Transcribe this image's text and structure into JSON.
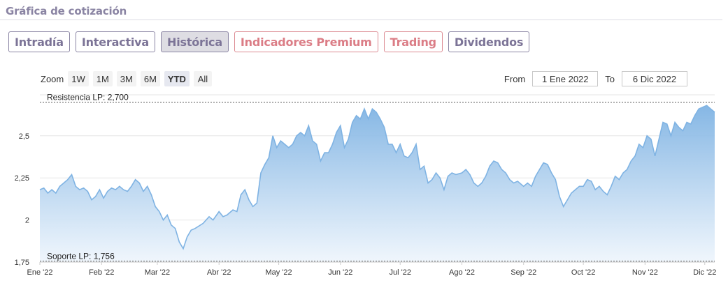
{
  "header": {
    "title": "Gráfica de cotización"
  },
  "tabs": [
    {
      "label": "Intradía",
      "variant": "normal"
    },
    {
      "label": "Interactiva",
      "variant": "normal"
    },
    {
      "label": "Histórica",
      "variant": "active"
    },
    {
      "label": "Indicadores Premium",
      "variant": "premium"
    },
    {
      "label": "Trading",
      "variant": "premium"
    },
    {
      "label": "Dividendos",
      "variant": "normal"
    }
  ],
  "zoom": {
    "label": "Zoom",
    "options": [
      "1W",
      "1M",
      "3M",
      "6M",
      "YTD",
      "All"
    ],
    "selected": "YTD"
  },
  "range": {
    "from_label": "From",
    "from_value": "1 Ene 2022",
    "to_label": "To",
    "to_value": "6 Dic 2022"
  },
  "colors": {
    "line": "#7fb3e3",
    "fill_top": "#7fb3e3",
    "fill_bottom": "#eef5fc",
    "grid": "#e6e6e6",
    "band_line": "#555555"
  },
  "chart_data": {
    "type": "area",
    "ylim": [
      1.75,
      2.76
    ],
    "yticks": [
      1.75,
      2,
      2.25,
      2.5
    ],
    "ytick_labels": [
      "1,75",
      "2",
      "2,25",
      "2,5"
    ],
    "xlim": [
      "2022-01-01",
      "2022-12-06"
    ],
    "xticks": [
      {
        "date": "2022-01-01",
        "label": "Ene '22"
      },
      {
        "date": "2022-02-01",
        "label": "Feb '22"
      },
      {
        "date": "2022-03-01",
        "label": "Mar '22"
      },
      {
        "date": "2022-04-01",
        "label": "Abr '22"
      },
      {
        "date": "2022-05-01",
        "label": "May '22"
      },
      {
        "date": "2022-06-01",
        "label": "Jun '22"
      },
      {
        "date": "2022-07-01",
        "label": "Jul '22"
      },
      {
        "date": "2022-08-01",
        "label": "Ago '22"
      },
      {
        "date": "2022-09-01",
        "label": "Sep '22"
      },
      {
        "date": "2022-10-01",
        "label": "Oct '22"
      },
      {
        "date": "2022-11-01",
        "label": "Nov '22"
      },
      {
        "date": "2022-12-01",
        "label": "Dic '22"
      }
    ],
    "reference_lines": [
      {
        "value": 2.7,
        "label": "Resistencia LP: 2,700"
      },
      {
        "value": 1.756,
        "label": "Soporte LP: 1,756"
      }
    ],
    "points": [
      [
        "2022-01-01",
        2.18
      ],
      [
        "2022-01-03",
        2.19
      ],
      [
        "2022-01-05",
        2.16
      ],
      [
        "2022-01-07",
        2.18
      ],
      [
        "2022-01-09",
        2.16
      ],
      [
        "2022-01-11",
        2.2
      ],
      [
        "2022-01-13",
        2.22
      ],
      [
        "2022-01-15",
        2.24
      ],
      [
        "2022-01-17",
        2.27
      ],
      [
        "2022-01-19",
        2.2
      ],
      [
        "2022-01-21",
        2.18
      ],
      [
        "2022-01-23",
        2.19
      ],
      [
        "2022-01-25",
        2.17
      ],
      [
        "2022-01-27",
        2.12
      ],
      [
        "2022-01-29",
        2.14
      ],
      [
        "2022-01-31",
        2.18
      ],
      [
        "2022-02-02",
        2.13
      ],
      [
        "2022-02-04",
        2.17
      ],
      [
        "2022-02-06",
        2.19
      ],
      [
        "2022-02-08",
        2.18
      ],
      [
        "2022-02-10",
        2.2
      ],
      [
        "2022-02-12",
        2.18
      ],
      [
        "2022-02-14",
        2.17
      ],
      [
        "2022-02-16",
        2.2
      ],
      [
        "2022-02-18",
        2.24
      ],
      [
        "2022-02-20",
        2.22
      ],
      [
        "2022-02-22",
        2.17
      ],
      [
        "2022-02-24",
        2.2
      ],
      [
        "2022-02-26",
        2.15
      ],
      [
        "2022-02-28",
        2.08
      ],
      [
        "2022-03-02",
        2.05
      ],
      [
        "2022-03-04",
        2.0
      ],
      [
        "2022-03-06",
        2.03
      ],
      [
        "2022-03-08",
        1.97
      ],
      [
        "2022-03-10",
        1.95
      ],
      [
        "2022-03-12",
        1.87
      ],
      [
        "2022-03-14",
        1.83
      ],
      [
        "2022-03-16",
        1.9
      ],
      [
        "2022-03-18",
        1.94
      ],
      [
        "2022-03-20",
        1.95
      ],
      [
        "2022-03-24",
        1.98
      ],
      [
        "2022-03-27",
        2.02
      ],
      [
        "2022-03-29",
        2.0
      ],
      [
        "2022-04-01",
        2.05
      ],
      [
        "2022-04-03",
        2.02
      ],
      [
        "2022-04-05",
        2.03
      ],
      [
        "2022-04-08",
        2.06
      ],
      [
        "2022-04-10",
        2.05
      ],
      [
        "2022-04-12",
        2.15
      ],
      [
        "2022-04-14",
        2.18
      ],
      [
        "2022-04-16",
        2.12
      ],
      [
        "2022-04-18",
        2.08
      ],
      [
        "2022-04-20",
        2.1
      ],
      [
        "2022-04-22",
        2.28
      ],
      [
        "2022-04-24",
        2.33
      ],
      [
        "2022-04-26",
        2.37
      ],
      [
        "2022-04-28",
        2.5
      ],
      [
        "2022-04-30",
        2.43
      ],
      [
        "2022-05-02",
        2.47
      ],
      [
        "2022-05-04",
        2.45
      ],
      [
        "2022-05-06",
        2.43
      ],
      [
        "2022-05-08",
        2.45
      ],
      [
        "2022-05-10",
        2.5
      ],
      [
        "2022-05-12",
        2.52
      ],
      [
        "2022-05-14",
        2.5
      ],
      [
        "2022-05-16",
        2.56
      ],
      [
        "2022-05-18",
        2.47
      ],
      [
        "2022-05-20",
        2.45
      ],
      [
        "2022-05-22",
        2.35
      ],
      [
        "2022-05-24",
        2.4
      ],
      [
        "2022-05-26",
        2.4
      ],
      [
        "2022-05-28",
        2.45
      ],
      [
        "2022-05-30",
        2.52
      ],
      [
        "2022-06-01",
        2.56
      ],
      [
        "2022-06-03",
        2.43
      ],
      [
        "2022-06-05",
        2.48
      ],
      [
        "2022-06-07",
        2.58
      ],
      [
        "2022-06-09",
        2.62
      ],
      [
        "2022-06-11",
        2.6
      ],
      [
        "2022-06-13",
        2.66
      ],
      [
        "2022-06-15",
        2.6
      ],
      [
        "2022-06-17",
        2.66
      ],
      [
        "2022-06-19",
        2.64
      ],
      [
        "2022-06-21",
        2.6
      ],
      [
        "2022-06-23",
        2.55
      ],
      [
        "2022-06-25",
        2.45
      ],
      [
        "2022-06-27",
        2.45
      ],
      [
        "2022-06-29",
        2.4
      ],
      [
        "2022-07-01",
        2.45
      ],
      [
        "2022-07-03",
        2.38
      ],
      [
        "2022-07-05",
        2.37
      ],
      [
        "2022-07-07",
        2.4
      ],
      [
        "2022-07-09",
        2.45
      ],
      [
        "2022-07-11",
        2.3
      ],
      [
        "2022-07-13",
        2.32
      ],
      [
        "2022-07-15",
        2.22
      ],
      [
        "2022-07-17",
        2.24
      ],
      [
        "2022-07-19",
        2.28
      ],
      [
        "2022-07-21",
        2.25
      ],
      [
        "2022-07-23",
        2.18
      ],
      [
        "2022-07-25",
        2.26
      ],
      [
        "2022-07-27",
        2.28
      ],
      [
        "2022-07-29",
        2.27
      ],
      [
        "2022-08-01",
        2.28
      ],
      [
        "2022-08-03",
        2.3
      ],
      [
        "2022-08-05",
        2.27
      ],
      [
        "2022-08-07",
        2.22
      ],
      [
        "2022-08-09",
        2.2
      ],
      [
        "2022-08-11",
        2.22
      ],
      [
        "2022-08-13",
        2.26
      ],
      [
        "2022-08-15",
        2.32
      ],
      [
        "2022-08-17",
        2.35
      ],
      [
        "2022-08-19",
        2.34
      ],
      [
        "2022-08-21",
        2.3
      ],
      [
        "2022-08-23",
        2.28
      ],
      [
        "2022-08-25",
        2.24
      ],
      [
        "2022-08-27",
        2.22
      ],
      [
        "2022-08-29",
        2.23
      ],
      [
        "2022-09-01",
        2.2
      ],
      [
        "2022-09-03",
        2.22
      ],
      [
        "2022-09-05",
        2.2
      ],
      [
        "2022-09-07",
        2.26
      ],
      [
        "2022-09-09",
        2.3
      ],
      [
        "2022-09-11",
        2.34
      ],
      [
        "2022-09-13",
        2.33
      ],
      [
        "2022-09-15",
        2.28
      ],
      [
        "2022-09-17",
        2.24
      ],
      [
        "2022-09-19",
        2.14
      ],
      [
        "2022-09-21",
        2.08
      ],
      [
        "2022-09-23",
        2.12
      ],
      [
        "2022-09-25",
        2.16
      ],
      [
        "2022-09-27",
        2.18
      ],
      [
        "2022-09-29",
        2.2
      ],
      [
        "2022-10-01",
        2.2
      ],
      [
        "2022-10-03",
        2.24
      ],
      [
        "2022-10-05",
        2.23
      ],
      [
        "2022-10-07",
        2.18
      ],
      [
        "2022-10-09",
        2.2
      ],
      [
        "2022-10-11",
        2.17
      ],
      [
        "2022-10-13",
        2.15
      ],
      [
        "2022-10-15",
        2.2
      ],
      [
        "2022-10-17",
        2.26
      ],
      [
        "2022-10-19",
        2.24
      ],
      [
        "2022-10-21",
        2.28
      ],
      [
        "2022-10-23",
        2.3
      ],
      [
        "2022-10-25",
        2.35
      ],
      [
        "2022-10-27",
        2.38
      ],
      [
        "2022-10-29",
        2.45
      ],
      [
        "2022-10-31",
        2.43
      ],
      [
        "2022-11-02",
        2.5
      ],
      [
        "2022-11-04",
        2.48
      ],
      [
        "2022-11-06",
        2.38
      ],
      [
        "2022-11-08",
        2.48
      ],
      [
        "2022-11-10",
        2.58
      ],
      [
        "2022-11-12",
        2.57
      ],
      [
        "2022-11-14",
        2.5
      ],
      [
        "2022-11-16",
        2.58
      ],
      [
        "2022-11-18",
        2.55
      ],
      [
        "2022-11-20",
        2.53
      ],
      [
        "2022-11-22",
        2.58
      ],
      [
        "2022-11-24",
        2.57
      ],
      [
        "2022-11-26",
        2.62
      ],
      [
        "2022-11-28",
        2.66
      ],
      [
        "2022-11-30",
        2.67
      ],
      [
        "2022-12-02",
        2.68
      ],
      [
        "2022-12-04",
        2.66
      ],
      [
        "2022-12-06",
        2.64
      ]
    ]
  }
}
